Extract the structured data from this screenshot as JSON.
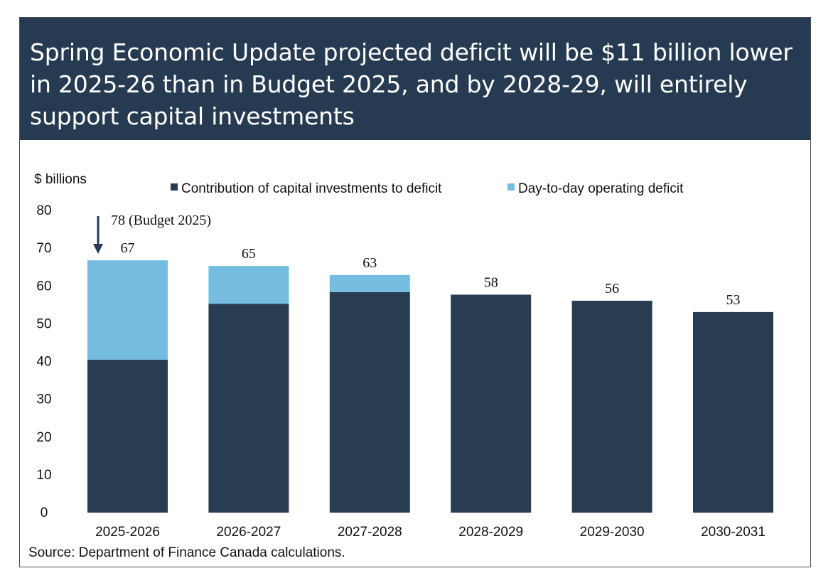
{
  "title": "Spring Economic Update projected deficit will be $11 billion lower in 2025-26 than in Budget 2025, and by 2028-29, will entirely support capital investments",
  "source": "Source: Department of Finance Canada calculations.",
  "colors": {
    "header_bg": "#263b51",
    "capital": "#283c52",
    "operating": "#74bde0"
  },
  "chart_data": {
    "type": "bar",
    "stacked": true,
    "title": "Spring Economic Update projected deficit will be $11 billion lower in 2025-26 than in Budget 2025, and by 2028-29, will entirely support capital investments",
    "ylabel": "$ billions",
    "xlabel": "",
    "ylim": [
      0,
      80
    ],
    "yticks": [
      0,
      10,
      20,
      30,
      40,
      50,
      60,
      70,
      80
    ],
    "categories": [
      "2025-2026",
      "2026-2027",
      "2027-2028",
      "2028-2029",
      "2029-2030",
      "2030-2031"
    ],
    "series": [
      {
        "name": "Contribution of capital investments to deficit",
        "color": "#283c52",
        "values": [
          40.5,
          55.3,
          58.4,
          57.7,
          56.1,
          53.1
        ]
      },
      {
        "name": "Day-to-day operating deficit",
        "color": "#74bde0",
        "values": [
          26.3,
          10.0,
          4.5,
          0,
          0,
          0
        ]
      }
    ],
    "totals_labels": [
      "67",
      "65",
      "63",
      "58",
      "56",
      "53"
    ],
    "annotation": {
      "text": "78 (Budget 2025)",
      "category": "2025-2026"
    },
    "legend_position": "top",
    "grid": false
  }
}
